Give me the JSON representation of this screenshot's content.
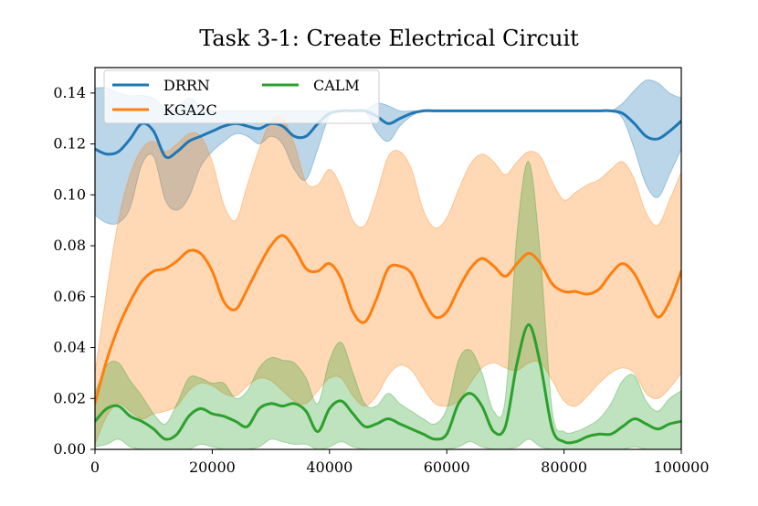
{
  "chart_data": {
    "type": "line",
    "title": "Task 3-1: Create Electrical Circuit",
    "xlabel": "",
    "ylabel": "",
    "xlim": [
      0,
      100000
    ],
    "ylim": [
      0,
      0.15
    ],
    "xticks": [
      0,
      20000,
      40000,
      60000,
      80000,
      100000
    ],
    "xtick_labels": [
      "0",
      "20000",
      "40000",
      "60000",
      "80000",
      "100000"
    ],
    "yticks": [
      0,
      0.02,
      0.04,
      0.06,
      0.08,
      0.1,
      0.12,
      0.14
    ],
    "ytick_labels": [
      "0.00",
      "0.02",
      "0.04",
      "0.06",
      "0.08",
      "0.10",
      "0.12",
      "0.14"
    ],
    "legend_position": "top-left",
    "x": [
      0,
      2000,
      4000,
      6000,
      8000,
      10000,
      12000,
      14000,
      16000,
      18000,
      20000,
      22000,
      24000,
      26000,
      28000,
      30000,
      32000,
      34000,
      36000,
      38000,
      40000,
      42000,
      44000,
      46000,
      48000,
      50000,
      52000,
      54000,
      56000,
      58000,
      60000,
      62000,
      64000,
      66000,
      68000,
      70000,
      72000,
      74000,
      76000,
      78000,
      80000,
      82000,
      84000,
      86000,
      88000,
      90000,
      92000,
      94000,
      96000,
      98000,
      100000
    ],
    "series": [
      {
        "name": "DRRN",
        "color": "#1f77b4",
        "values": [
          0.118,
          0.116,
          0.117,
          0.122,
          0.128,
          0.125,
          0.115,
          0.117,
          0.121,
          0.123,
          0.125,
          0.127,
          0.128,
          0.127,
          0.126,
          0.128,
          0.127,
          0.123,
          0.123,
          0.128,
          0.132,
          0.133,
          0.133,
          0.133,
          0.131,
          0.128,
          0.13,
          0.132,
          0.133,
          0.133,
          0.133,
          0.133,
          0.133,
          0.133,
          0.133,
          0.133,
          0.133,
          0.133,
          0.133,
          0.133,
          0.133,
          0.133,
          0.133,
          0.133,
          0.133,
          0.132,
          0.128,
          0.123,
          0.122,
          0.125,
          0.129
        ],
        "lower": [
          0.092,
          0.089,
          0.089,
          0.095,
          0.112,
          0.115,
          0.098,
          0.094,
          0.099,
          0.111,
          0.117,
          0.121,
          0.124,
          0.123,
          0.12,
          0.123,
          0.12,
          0.11,
          0.106,
          0.118,
          0.131,
          0.133,
          0.133,
          0.133,
          0.125,
          0.121,
          0.127,
          0.131,
          0.133,
          0.133,
          0.133,
          0.133,
          0.133,
          0.133,
          0.133,
          0.133,
          0.133,
          0.133,
          0.133,
          0.133,
          0.133,
          0.133,
          0.133,
          0.133,
          0.133,
          0.13,
          0.118,
          0.104,
          0.099,
          0.108,
          0.118
        ],
        "upper": [
          0.142,
          0.142,
          0.14,
          0.139,
          0.139,
          0.138,
          0.134,
          0.134,
          0.138,
          0.135,
          0.133,
          0.133,
          0.133,
          0.133,
          0.133,
          0.133,
          0.133,
          0.133,
          0.133,
          0.133,
          0.133,
          0.133,
          0.133,
          0.133,
          0.136,
          0.135,
          0.133,
          0.133,
          0.133,
          0.133,
          0.133,
          0.133,
          0.133,
          0.133,
          0.133,
          0.133,
          0.133,
          0.133,
          0.133,
          0.133,
          0.133,
          0.133,
          0.133,
          0.133,
          0.133,
          0.136,
          0.141,
          0.145,
          0.144,
          0.14,
          0.138
        ]
      },
      {
        "name": "KGA2C",
        "color": "#ff7f0e",
        "values": [
          0.018,
          0.035,
          0.048,
          0.058,
          0.066,
          0.07,
          0.071,
          0.074,
          0.078,
          0.077,
          0.07,
          0.058,
          0.055,
          0.063,
          0.072,
          0.08,
          0.084,
          0.079,
          0.071,
          0.07,
          0.073,
          0.067,
          0.054,
          0.05,
          0.059,
          0.071,
          0.072,
          0.069,
          0.059,
          0.052,
          0.054,
          0.063,
          0.071,
          0.075,
          0.072,
          0.068,
          0.073,
          0.077,
          0.073,
          0.065,
          0.062,
          0.062,
          0.061,
          0.063,
          0.069,
          0.073,
          0.069,
          0.06,
          0.052,
          0.058,
          0.07
        ],
        "lower": [
          0.002,
          0.013,
          0.018,
          0.015,
          0.012,
          0.014,
          0.015,
          0.017,
          0.023,
          0.026,
          0.025,
          0.022,
          0.021,
          0.025,
          0.028,
          0.027,
          0.023,
          0.019,
          0.018,
          0.023,
          0.028,
          0.028,
          0.021,
          0.017,
          0.021,
          0.029,
          0.033,
          0.031,
          0.024,
          0.018,
          0.017,
          0.019,
          0.026,
          0.032,
          0.034,
          0.032,
          0.031,
          0.034,
          0.034,
          0.027,
          0.019,
          0.017,
          0.021,
          0.026,
          0.03,
          0.032,
          0.03,
          0.022,
          0.02,
          0.024,
          0.03
        ],
        "upper": [
          0.03,
          0.062,
          0.09,
          0.108,
          0.118,
          0.121,
          0.117,
          0.12,
          0.124,
          0.123,
          0.113,
          0.096,
          0.09,
          0.104,
          0.118,
          0.129,
          0.13,
          0.12,
          0.105,
          0.104,
          0.11,
          0.103,
          0.09,
          0.088,
          0.1,
          0.115,
          0.117,
          0.11,
          0.094,
          0.087,
          0.091,
          0.102,
          0.112,
          0.116,
          0.113,
          0.108,
          0.113,
          0.117,
          0.115,
          0.105,
          0.098,
          0.101,
          0.104,
          0.106,
          0.11,
          0.113,
          0.106,
          0.093,
          0.088,
          0.098,
          0.109
        ]
      },
      {
        "name": "CALM",
        "color": "#2ca02c",
        "values": [
          0.011,
          0.016,
          0.017,
          0.013,
          0.011,
          0.008,
          0.004,
          0.006,
          0.013,
          0.016,
          0.014,
          0.013,
          0.011,
          0.009,
          0.016,
          0.018,
          0.017,
          0.018,
          0.015,
          0.007,
          0.016,
          0.019,
          0.014,
          0.009,
          0.01,
          0.012,
          0.01,
          0.008,
          0.006,
          0.004,
          0.006,
          0.018,
          0.022,
          0.017,
          0.007,
          0.009,
          0.034,
          0.049,
          0.033,
          0.008,
          0.003,
          0.003,
          0.005,
          0.006,
          0.006,
          0.009,
          0.012,
          0.01,
          0.008,
          0.01,
          0.011
        ],
        "lower": [
          0.001,
          0.002,
          0.004,
          0.001,
          0.0,
          0.0,
          0.0,
          0.0,
          0.0,
          0.002,
          0.001,
          0.0,
          0.0,
          0.0,
          0.001,
          0.004,
          0.003,
          0.002,
          0.002,
          0.0,
          0.001,
          0.003,
          0.001,
          0.0,
          0.0,
          0.0,
          0.0,
          0.0,
          0.0,
          0.0,
          0.0,
          0.001,
          0.003,
          0.001,
          0.0,
          0.0,
          0.001,
          0.004,
          0.001,
          0.0,
          0.0,
          0.0,
          0.0,
          0.0,
          0.0,
          0.0,
          0.001,
          0.0,
          0.0,
          0.0,
          0.0
        ],
        "upper": [
          0.022,
          0.033,
          0.034,
          0.027,
          0.021,
          0.014,
          0.01,
          0.018,
          0.028,
          0.028,
          0.026,
          0.026,
          0.02,
          0.023,
          0.032,
          0.036,
          0.035,
          0.034,
          0.028,
          0.018,
          0.035,
          0.042,
          0.03,
          0.018,
          0.017,
          0.022,
          0.018,
          0.015,
          0.012,
          0.01,
          0.016,
          0.035,
          0.039,
          0.03,
          0.015,
          0.02,
          0.085,
          0.113,
          0.075,
          0.015,
          0.007,
          0.007,
          0.009,
          0.012,
          0.018,
          0.027,
          0.029,
          0.019,
          0.015,
          0.02,
          0.023
        ]
      }
    ]
  }
}
